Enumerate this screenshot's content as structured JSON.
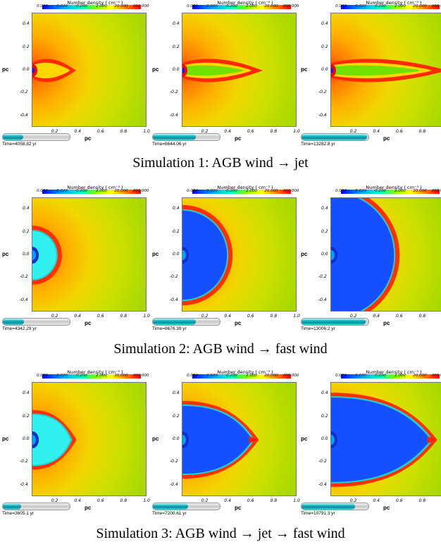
{
  "colorbar": {
    "title": "Number density ( cm⁻³ )",
    "ticks": [
      "0.002",
      "0.020",
      "0.200",
      "2.000",
      "20.000",
      "200.000"
    ]
  },
  "axes": {
    "y_ticks": [
      "0.4",
      "0.2",
      "0.0",
      "-0.2",
      "-0.4"
    ],
    "x_ticks": [
      "0.2",
      "0.4",
      "0.6",
      "0.8",
      "1.0"
    ],
    "y_label": "pc",
    "x_label": "pc"
  },
  "rows": [
    {
      "caption": "Simulation 1: AGB wind → jet",
      "panels": [
        {
          "time": "Time=4058.82 yr",
          "progress": 0.3,
          "kind": "jet",
          "extent": 0.38
        },
        {
          "time": "Time=8644.06 yr",
          "progress": 0.64,
          "kind": "jet",
          "extent": 0.7
        },
        {
          "time": "Time=13282.8 yr",
          "progress": 0.98,
          "kind": "jet",
          "extent": 1.02
        }
      ]
    },
    {
      "caption": "Simulation 2: AGB wind → fast wind",
      "panels": [
        {
          "time": "Time=4342.29 yr",
          "progress": 0.32,
          "kind": "bubble",
          "extent": 0.22
        },
        {
          "time": "Time=8676.39 yr",
          "progress": 0.64,
          "kind": "bubble",
          "extent": 0.4
        },
        {
          "time": "Time=13006.2 yr",
          "progress": 0.96,
          "kind": "bubble",
          "extent": 0.56
        }
      ]
    },
    {
      "caption": "Simulation 3: AGB wind → jet → fast wind",
      "panels": [
        {
          "time": "Time=3605.1 yr",
          "progress": 0.27,
          "kind": "jetbubble",
          "extent": 0.36
        },
        {
          "time": "Time=7200.61 yr",
          "progress": 0.53,
          "kind": "jetbubble",
          "extent": 0.64
        },
        {
          "time": "Time=10791.3 yr",
          "progress": 0.8,
          "kind": "jetbubble",
          "extent": 0.9
        }
      ]
    }
  ]
}
